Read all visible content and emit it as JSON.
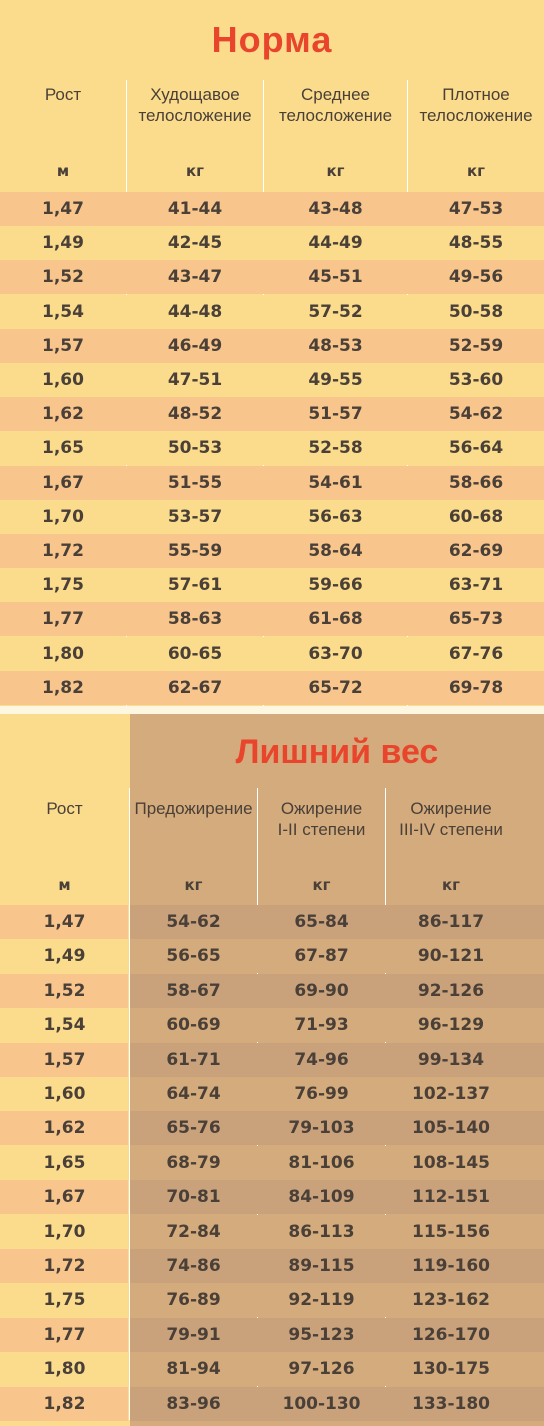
{
  "norma": {
    "title": "Норма",
    "headers": [
      "Рост",
      "Худощавое\nтелосложение",
      "Среднее\nтелосложение",
      "Плотное\nтелосложение"
    ],
    "units": [
      "м",
      "кг",
      "кг",
      "кг"
    ],
    "rows": [
      [
        "1,47",
        "41-44",
        "43-48",
        "47-53"
      ],
      [
        "1,49",
        "42-45",
        "44-49",
        "48-55"
      ],
      [
        "1,52",
        "43-47",
        "45-51",
        "49-56"
      ],
      [
        "1,54",
        "44-48",
        "57-52",
        "50-58"
      ],
      [
        "1,57",
        "46-49",
        "48-53",
        "52-59"
      ],
      [
        "1,60",
        "47-51",
        "49-55",
        "53-60"
      ],
      [
        "1,62",
        "48-52",
        "51-57",
        "54-62"
      ],
      [
        "1,65",
        "50-53",
        "52-58",
        "56-64"
      ],
      [
        "1,67",
        "51-55",
        "54-61",
        "58-66"
      ],
      [
        "1,70",
        "53-57",
        "56-63",
        "60-68"
      ],
      [
        "1,72",
        "55-59",
        "58-64",
        "62-69"
      ],
      [
        "1,75",
        "57-61",
        "59-66",
        "63-71"
      ],
      [
        "1,77",
        "58-63",
        "61-68",
        "65-73"
      ],
      [
        "1,80",
        "60-65",
        "63-70",
        "67-76"
      ],
      [
        "1,82",
        "62-67",
        "65-72",
        "69-78"
      ]
    ]
  },
  "lishniy": {
    "title": "Лишний вес",
    "headers": [
      "Рост",
      "Предожирение",
      "Ожирение\nI-II степени",
      "Ожирение\nIII-IV степени"
    ],
    "units": [
      "м",
      "кг",
      "кг",
      "кг"
    ],
    "rows": [
      [
        "1,47",
        "54-62",
        "65-84",
        "86-117"
      ],
      [
        "1,49",
        "56-65",
        "67-87",
        "90-121"
      ],
      [
        "1,52",
        "58-67",
        "69-90",
        "92-126"
      ],
      [
        "1,54",
        "60-69",
        "71-93",
        "96-129"
      ],
      [
        "1,57",
        "61-71",
        "74-96",
        "99-134"
      ],
      [
        "1,60",
        "64-74",
        "76-99",
        "102-137"
      ],
      [
        "1,62",
        "65-76",
        "79-103",
        "105-140"
      ],
      [
        "1,65",
        "68-79",
        "81-106",
        "108-145"
      ],
      [
        "1,67",
        "70-81",
        "84-109",
        "112-151"
      ],
      [
        "1,70",
        "72-84",
        "86-113",
        "115-156"
      ],
      [
        "1,72",
        "74-86",
        "89-115",
        "119-160"
      ],
      [
        "1,75",
        "76-89",
        "92-119",
        "123-162"
      ],
      [
        "1,77",
        "79-91",
        "95-123",
        "126-170"
      ],
      [
        "1,80",
        "81-94",
        "97-126",
        "130-175"
      ],
      [
        "1,82",
        "83-96",
        "100-130",
        "133-180"
      ]
    ]
  }
}
